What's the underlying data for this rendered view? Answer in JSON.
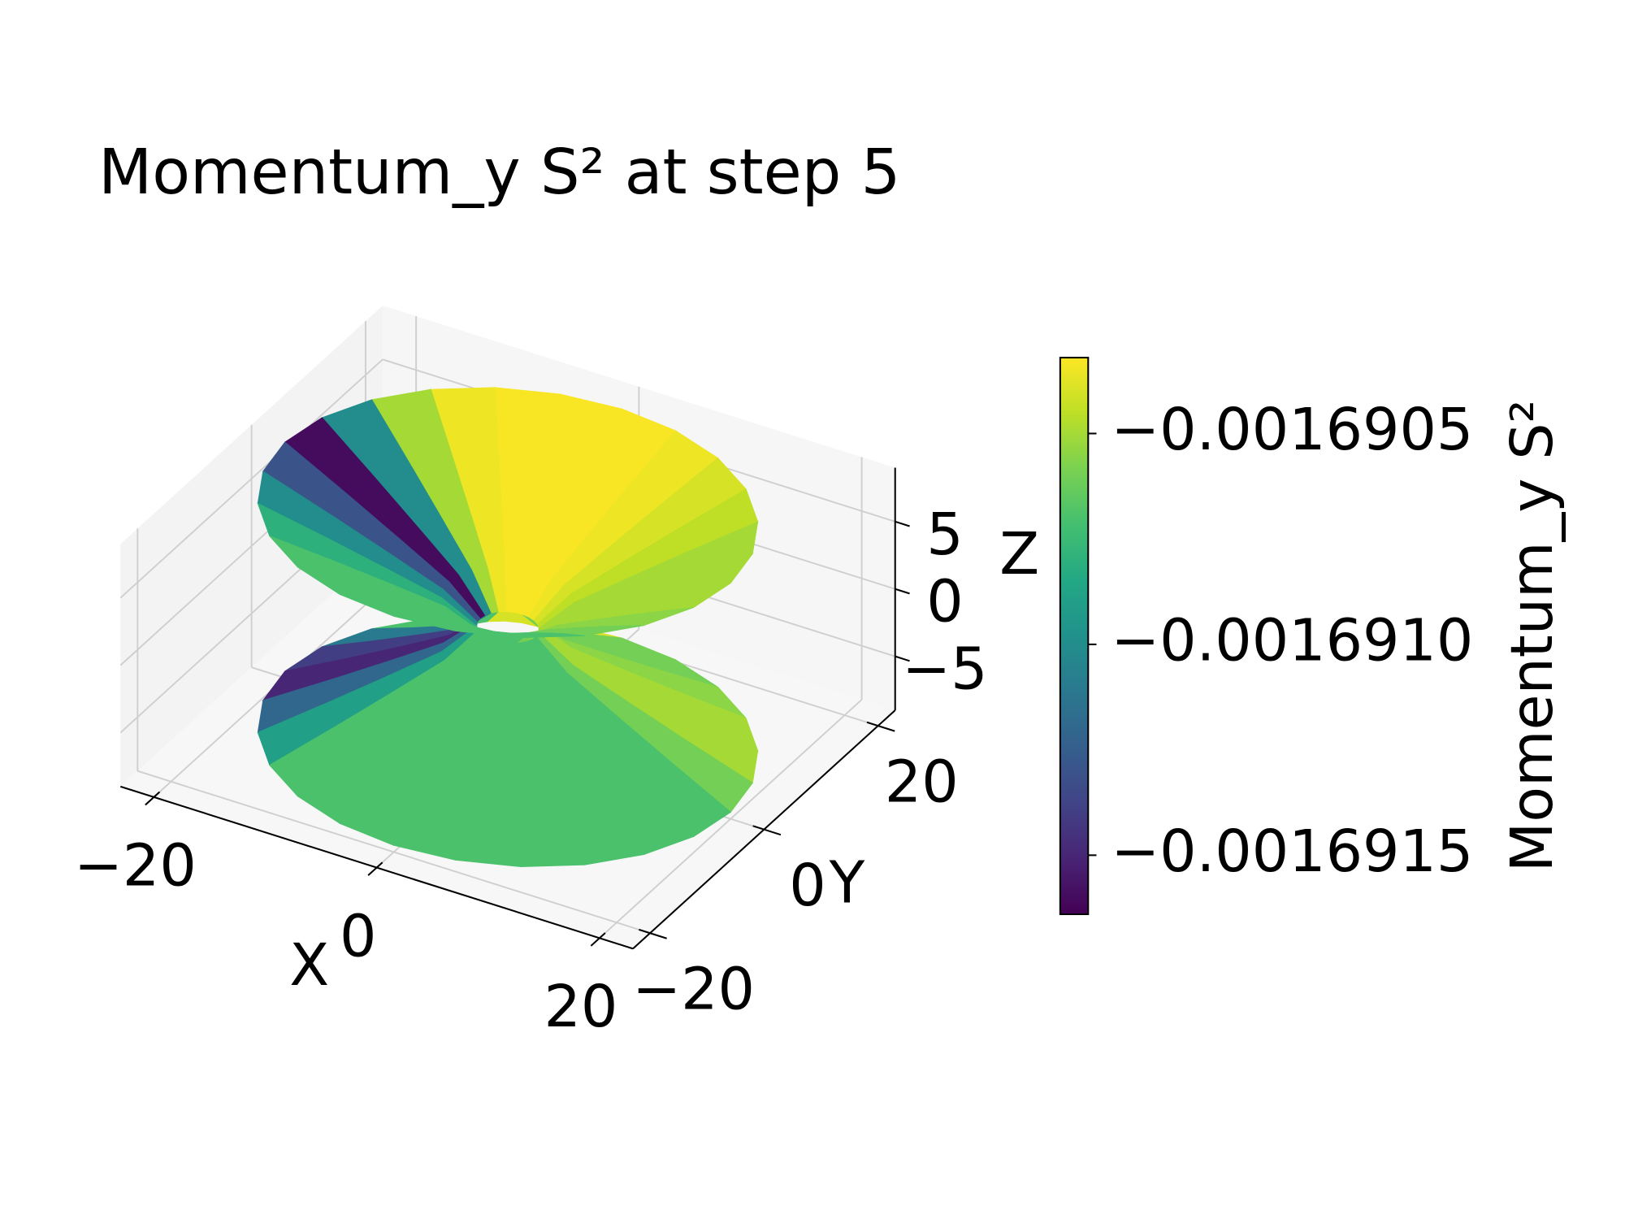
{
  "chart_data": {
    "type": "surface3d",
    "title": "Momentum_y S² at step 5",
    "xlabel": "X",
    "ylabel": "Y",
    "zlabel": "Z",
    "colorbar_label": "Momentum_y S²",
    "colormap": "viridis",
    "grid": true,
    "xlim": [
      -23,
      23
    ],
    "ylim": [
      -23,
      23
    ],
    "zlim": [
      -9,
      9
    ],
    "xticks": [
      {
        "value": -20,
        "label": "−20"
      },
      0,
      20
    ],
    "yticks": [
      {
        "value": -20,
        "label": "−20"
      },
      0,
      20
    ],
    "zticks": [
      {
        "value": -5,
        "label": "−5"
      },
      0,
      5
    ],
    "clim": [
      -0.00169164,
      -0.00169032
    ],
    "cticks": [
      {
        "value": -0.0016915,
        "label": "−0.0016915"
      },
      {
        "value": -0.001691,
        "label": "−0.0016910"
      },
      {
        "value": -0.0016905,
        "label": "−0.0016905"
      }
    ],
    "surface": [
      {
        "z": [
          -8.5,
          -6,
          -4,
          -2,
          0
        ],
        "radius": [
          20,
          14.2,
          9.7,
          5.3,
          2.5
        ],
        "values": [
          -0.0016906,
          -0.0016905,
          -0.0016905,
          -0.00169055,
          -0.0016906,
          -0.0016906,
          -0.0016904,
          -0.0016904,
          -0.0016904,
          -0.0016907,
          -0.0016911,
          -0.0016914,
          -0.0016915,
          -0.0016912,
          -0.0016909,
          -0.0016907,
          -0.0016907,
          -0.0016907,
          -0.0016907,
          -0.0016907,
          -0.0016907,
          -0.0016907,
          -0.0016907,
          -0.0016907
        ]
      },
      {
        "z": [
          0,
          2,
          4,
          6,
          8.5
        ],
        "radius": [
          2.5,
          5.3,
          9.7,
          14.2,
          20
        ],
        "values": [
          -0.0016905,
          -0.0016905,
          -0.00169045,
          -0.0016904,
          -0.00169035,
          -0.00169033,
          -0.00169033,
          -0.00169033,
          -0.00169035,
          -0.0016905,
          -0.001691,
          -0.0016916,
          -0.0016913,
          -0.001691,
          -0.0016908,
          -0.0016907,
          -0.0016907,
          -0.0016907,
          -0.0016907,
          -0.0016907,
          -0.0016907,
          -0.0016906,
          -0.00169055,
          -0.0016905
        ]
      }
    ]
  }
}
